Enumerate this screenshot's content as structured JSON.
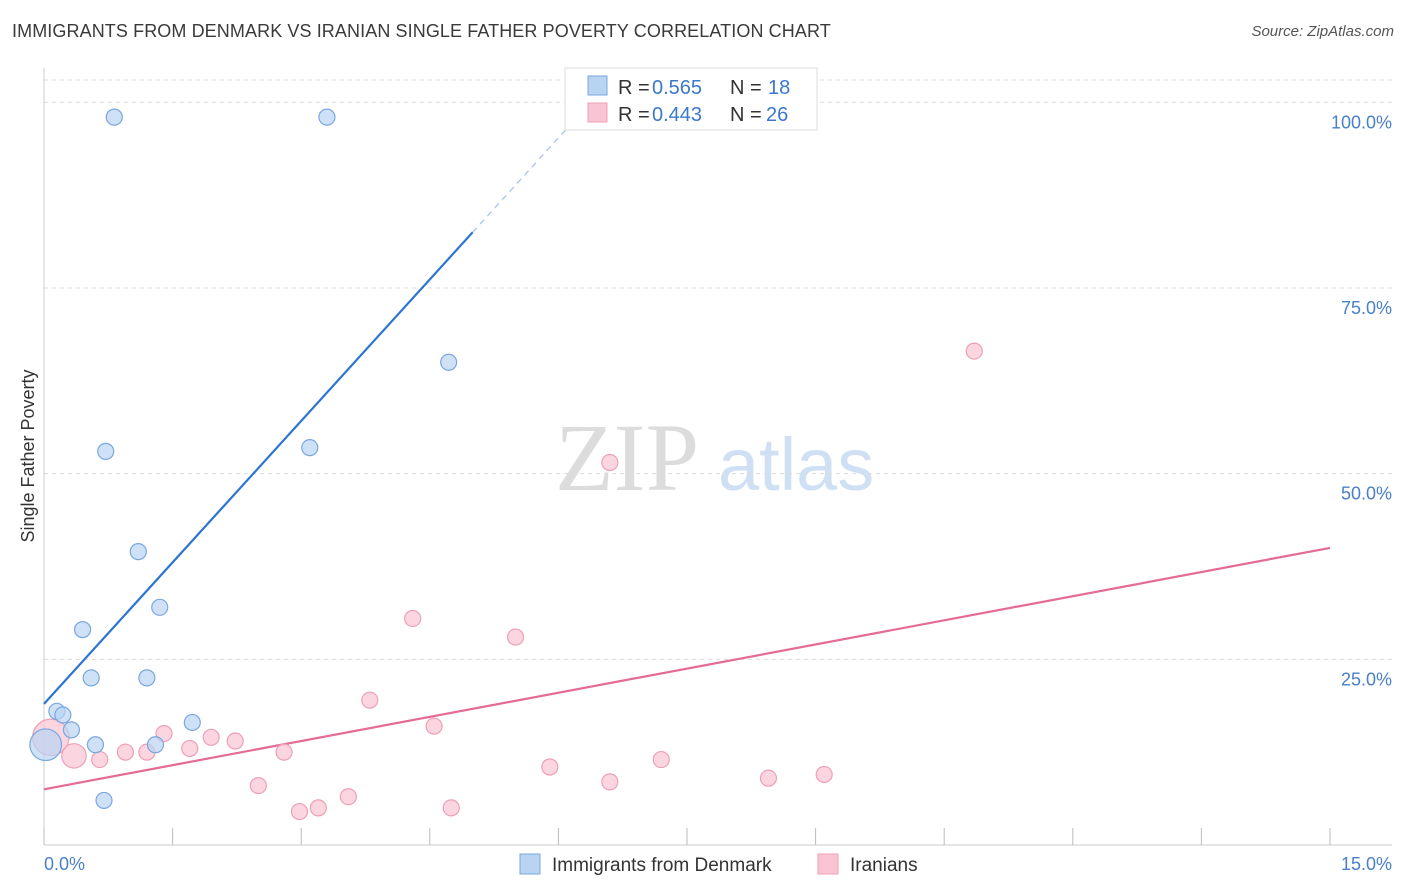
{
  "header": {
    "title": "IMMIGRANTS FROM DENMARK VS IRANIAN SINGLE FATHER POVERTY CORRELATION CHART",
    "source": "Source: ZipAtlas.com"
  },
  "watermark": {
    "zip": "ZIP",
    "atlas": "atlas"
  },
  "colors": {
    "blue_fill": "#b9d4f3",
    "blue_stroke": "#7aa7e0",
    "blue_line": "#2f74d0",
    "pink_fill": "#f9c4d3",
    "pink_stroke": "#ee9fb6",
    "pink_line": "#e56a96",
    "tick_text": "#4a7fc9",
    "grid": "#dcdcdc"
  },
  "chart_data": {
    "type": "scatter",
    "title": "IMMIGRANTS FROM DENMARK VS IRANIAN SINGLE FATHER POVERTY CORRELATION CHART",
    "xlabel": "",
    "ylabel": "Single Father Poverty",
    "xlim": [
      0,
      15
    ],
    "ylim": [
      0,
      103
    ],
    "x_tick_labels": [
      "0.0%",
      "15.0%"
    ],
    "y_ticks": [
      25,
      50,
      75,
      100
    ],
    "y_tick_labels": [
      "25.0%",
      "50.0%",
      "75.0%",
      "100.0%"
    ],
    "grid": true,
    "legend": {
      "placement": "top-center",
      "entries": [
        {
          "r_label": "R = ",
          "r_value": "0.565",
          "n_label": "N = ",
          "n_value": "18"
        },
        {
          "r_label": "R = ",
          "r_value": "0.443",
          "n_label": "N = ",
          "n_value": "26"
        }
      ]
    },
    "series": [
      {
        "name": "Immigrants from Denmark",
        "color": "blue",
        "points": [
          [
            0.02,
            13.5,
            18
          ],
          [
            0.15,
            18.0,
            10
          ],
          [
            0.22,
            17.5,
            10
          ],
          [
            0.32,
            15.5,
            10
          ],
          [
            0.45,
            29.0,
            10
          ],
          [
            0.55,
            22.5,
            10
          ],
          [
            0.6,
            13.5,
            10
          ],
          [
            0.7,
            6.0,
            10
          ],
          [
            0.72,
            53.0,
            10
          ],
          [
            0.82,
            98.0,
            10
          ],
          [
            1.1,
            39.5,
            10
          ],
          [
            1.2,
            22.5,
            10
          ],
          [
            1.3,
            13.5,
            10
          ],
          [
            1.35,
            32.0,
            10
          ],
          [
            1.73,
            16.5,
            10
          ],
          [
            3.1,
            53.5,
            10
          ],
          [
            3.3,
            98.0,
            10
          ],
          [
            4.72,
            65.0,
            10
          ]
        ],
        "trend": {
          "x0": 0.0,
          "y0": 19.0,
          "x1": 5.0,
          "y1": 82.5,
          "dash_to_x": 6.2
        }
      },
      {
        "name": "Iranians",
        "color": "pink",
        "points": [
          [
            0.08,
            14.5,
            22
          ],
          [
            0.35,
            12.0,
            12
          ],
          [
            0.65,
            11.5,
            10
          ],
          [
            0.95,
            12.5,
            10
          ],
          [
            1.2,
            12.5,
            10
          ],
          [
            1.4,
            15.0,
            10
          ],
          [
            1.7,
            13.0,
            10
          ],
          [
            1.95,
            14.5,
            10
          ],
          [
            2.23,
            14.0,
            10
          ],
          [
            2.5,
            8.0,
            10
          ],
          [
            2.8,
            12.5,
            10
          ],
          [
            2.98,
            4.5,
            10
          ],
          [
            3.2,
            5.0,
            10
          ],
          [
            3.55,
            6.5,
            10
          ],
          [
            3.8,
            19.5,
            10
          ],
          [
            4.3,
            30.5,
            10
          ],
          [
            4.55,
            16.0,
            10
          ],
          [
            4.75,
            5.0,
            10
          ],
          [
            5.5,
            28.0,
            10
          ],
          [
            5.9,
            10.5,
            10
          ],
          [
            6.6,
            51.5,
            10
          ],
          [
            6.6,
            8.5,
            10
          ],
          [
            7.2,
            11.5,
            10
          ],
          [
            8.45,
            9.0,
            10
          ],
          [
            9.1,
            9.5,
            10
          ],
          [
            10.85,
            66.5,
            10
          ]
        ],
        "trend": {
          "x0": 0.0,
          "y0": 7.5,
          "x1": 15.0,
          "y1": 40.0
        }
      }
    ],
    "bottom_legend": [
      "Immigrants from Denmark",
      "Iranians"
    ]
  }
}
